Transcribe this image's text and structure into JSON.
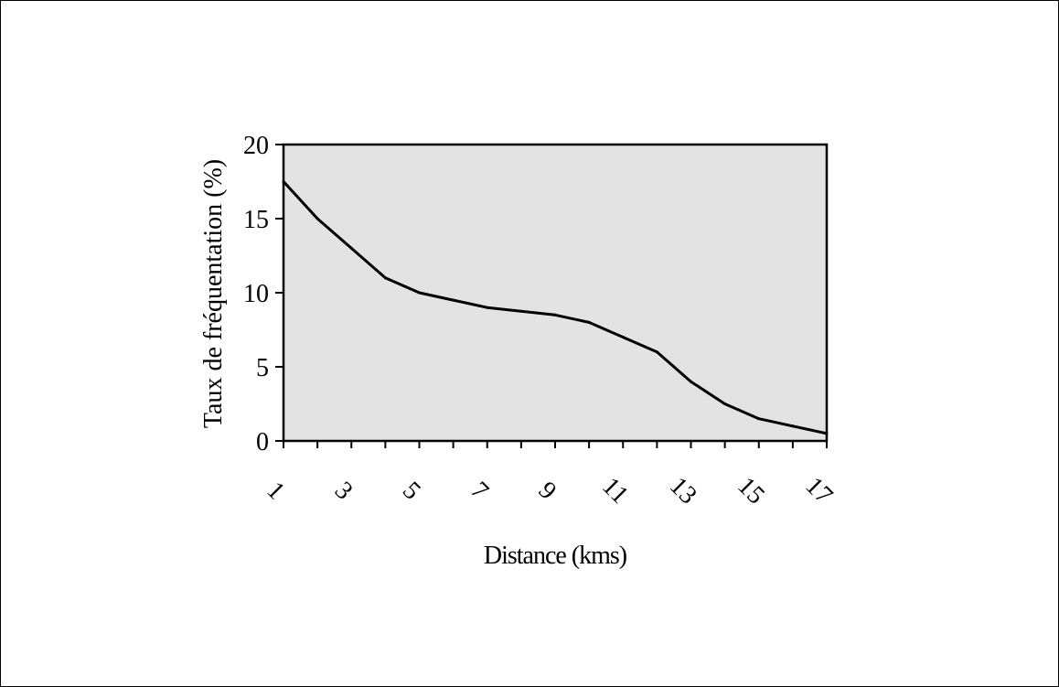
{
  "chart_data": {
    "type": "line",
    "title": "",
    "xlabel": "Distance (kms)",
    "ylabel": "Taux de fréquentation (%)",
    "x": [
      1,
      2,
      3,
      4,
      5,
      6,
      7,
      8,
      9,
      10,
      11,
      12,
      13,
      14,
      15,
      16,
      17
    ],
    "x_tick_labels": [
      "1",
      "3",
      "5",
      "7",
      "9",
      "11",
      "13",
      "15",
      "17"
    ],
    "y_ticks": [
      0,
      5,
      10,
      15,
      20
    ],
    "ylim": [
      0,
      20
    ],
    "series": [
      {
        "values": [
          17.5,
          15,
          13,
          11,
          10,
          9.5,
          9,
          8.75,
          8.5,
          8,
          7,
          6,
          4,
          2.5,
          1.5,
          1,
          0.5
        ]
      }
    ],
    "plot_background": "#e3e3e3",
    "line_color": "#000000",
    "grid": false,
    "legend": "none"
  }
}
